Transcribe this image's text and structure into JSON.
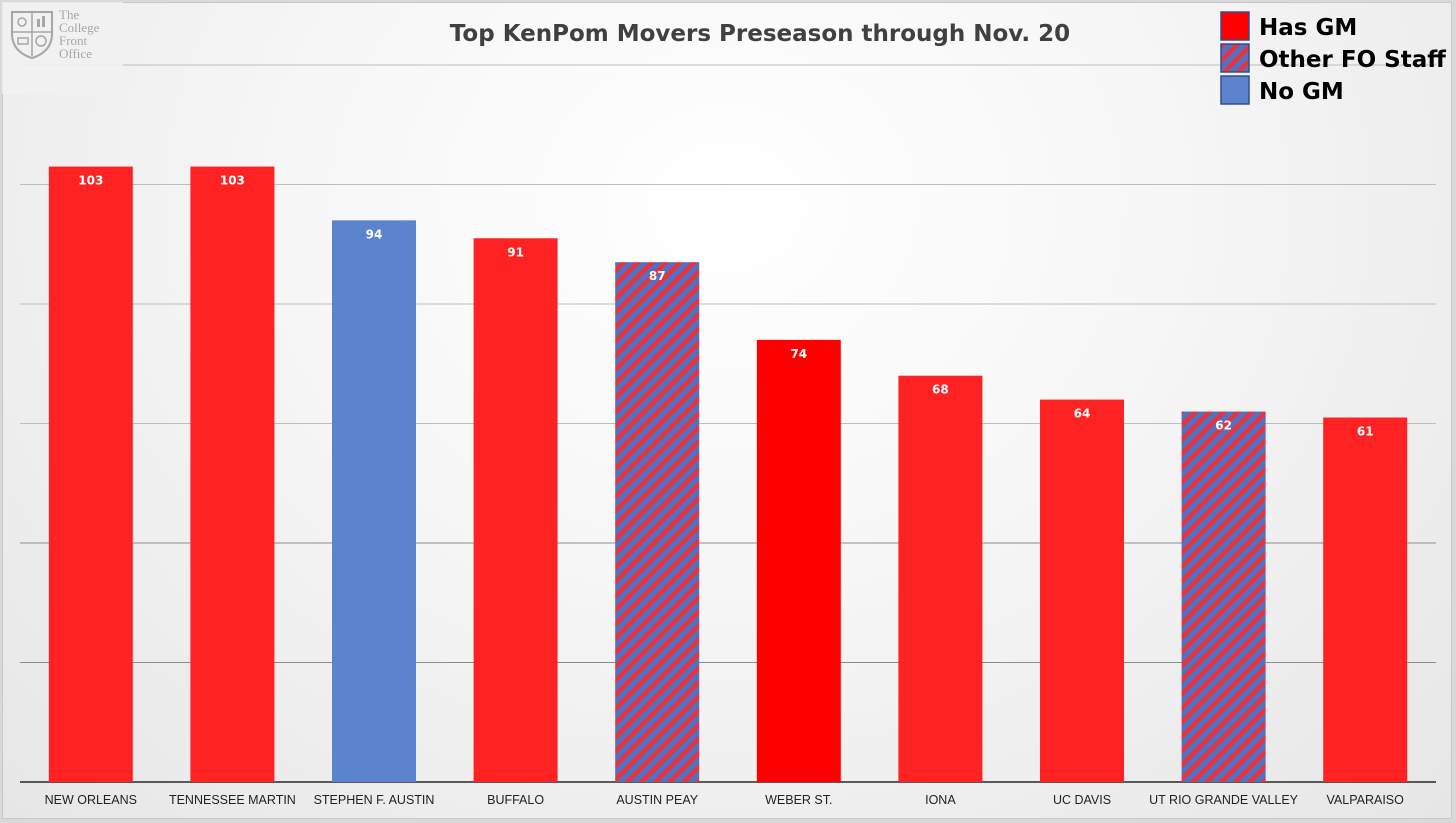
{
  "logo": {
    "lines": [
      "The",
      "College",
      "Front",
      "Office"
    ],
    "icon": "shield-crest-icon"
  },
  "chart_data": {
    "type": "bar",
    "title": "Top KenPom Movers Preseason through Nov. 20",
    "xlabel": "",
    "ylabel": "",
    "ylim": [
      0,
      120
    ],
    "grid": true,
    "legend_position": "top-right",
    "categories": [
      "NEW ORLEANS",
      "TENNESSEE MARTIN",
      "STEPHEN F. AUSTIN",
      "BUFFALO",
      "AUSTIN PEAY",
      "WEBER ST.",
      "IONA",
      "UC DAVIS",
      "UT RIO GRANDE VALLEY",
      "VALPARAISO"
    ],
    "values": [
      103,
      103,
      94,
      91,
      87,
      74,
      68,
      64,
      62,
      61
    ],
    "groups": [
      "Has GM",
      "Has GM",
      "No GM",
      "Has GM",
      "Other FO Staff",
      "Has GM",
      "Has GM",
      "Has GM",
      "Other FO Staff",
      "Has GM"
    ],
    "legend": [
      {
        "name": "Has GM",
        "style": "solid-red"
      },
      {
        "name": "Other FO Staff",
        "style": "red-blue-stripes"
      },
      {
        "name": "No GM",
        "style": "solid-blue"
      }
    ],
    "colors": {
      "red": "#fe2222",
      "red_bright": "#ff0000",
      "blue": "#5b84cc",
      "stripe_blue": "#5470c0",
      "stripe_red": "#e8323c"
    }
  }
}
